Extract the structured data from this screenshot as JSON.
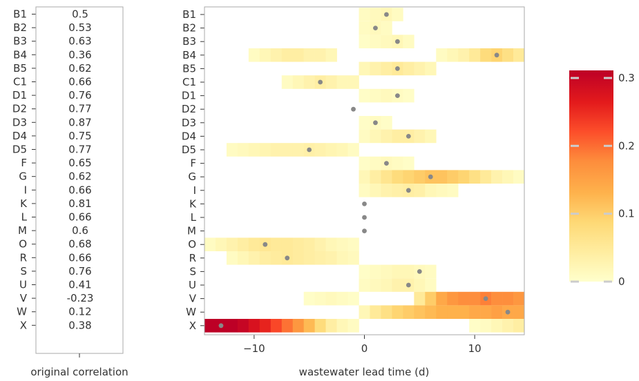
{
  "chart_data": [
    {
      "type": "table",
      "xlabel": "original correlation",
      "rows": [
        {
          "label": "B1",
          "value": "0.5"
        },
        {
          "label": "B2",
          "value": "0.53"
        },
        {
          "label": "B3",
          "value": "0.63"
        },
        {
          "label": "B4",
          "value": "0.36"
        },
        {
          "label": "B5",
          "value": "0.62"
        },
        {
          "label": "C1",
          "value": "0.66"
        },
        {
          "label": "D1",
          "value": "0.76"
        },
        {
          "label": "D2",
          "value": "0.77"
        },
        {
          "label": "D3",
          "value": "0.87"
        },
        {
          "label": "D4",
          "value": "0.75"
        },
        {
          "label": "D5",
          "value": "0.77"
        },
        {
          "label": "F",
          "value": "0.65"
        },
        {
          "label": "G",
          "value": "0.62"
        },
        {
          "label": "I",
          "value": "0.66"
        },
        {
          "label": "K",
          "value": "0.81"
        },
        {
          "label": "L",
          "value": "0.66"
        },
        {
          "label": "M",
          "value": "0.6"
        },
        {
          "label": "O",
          "value": "0.68"
        },
        {
          "label": "R",
          "value": "0.66"
        },
        {
          "label": "S",
          "value": "0.76"
        },
        {
          "label": "U",
          "value": "0.41"
        },
        {
          "label": "V",
          "value": "-0.23"
        },
        {
          "label": "W",
          "value": "0.12"
        },
        {
          "label": "X",
          "value": "0.38"
        }
      ]
    },
    {
      "type": "heatmap",
      "xlabel": "wastewater lead time (d)",
      "xlim": [
        -14.5,
        14.5
      ],
      "xticks": [
        -10,
        0,
        10
      ],
      "xtick_labels": [
        "−10",
        "0",
        "10"
      ],
      "categories": [
        "B1",
        "B2",
        "B3",
        "B4",
        "B5",
        "C1",
        "D1",
        "D2",
        "D3",
        "D4",
        "D5",
        "F",
        "G",
        "I",
        "K",
        "L",
        "M",
        "O",
        "R",
        "S",
        "U",
        "V",
        "W",
        "X"
      ],
      "best_lag_marker_color": "#888888",
      "best_lag": [
        2,
        1,
        3,
        12,
        3,
        -4,
        3,
        -1,
        1,
        4,
        -5,
        2,
        6,
        4,
        0,
        0,
        0,
        -9,
        -7,
        5,
        4,
        11,
        13,
        -13
      ],
      "cells": [
        {
          "row": "B1",
          "lags": [
            0,
            1,
            2,
            3
          ],
          "values": [
            0.01,
            0.015,
            0.02,
            0.01
          ]
        },
        {
          "row": "B2",
          "lags": [
            0,
            1,
            2
          ],
          "values": [
            0.01,
            0.015,
            0.01
          ]
        },
        {
          "row": "B3",
          "lags": [
            0,
            1,
            2,
            3,
            4
          ],
          "values": [
            0.005,
            0.01,
            0.015,
            0.02,
            0.01
          ]
        },
        {
          "row": "B4",
          "lags": [
            -10,
            -9,
            -8,
            -7,
            -6,
            -5,
            -4,
            -3,
            7,
            8,
            9,
            10,
            11,
            12,
            13,
            14
          ],
          "values": [
            0.01,
            0.02,
            0.03,
            0.04,
            0.04,
            0.03,
            0.03,
            0.02,
            0.01,
            0.02,
            0.03,
            0.05,
            0.08,
            0.09,
            0.07,
            0.05
          ]
        },
        {
          "row": "B5",
          "lags": [
            0,
            1,
            2,
            3,
            4,
            5,
            6
          ],
          "values": [
            0.02,
            0.03,
            0.04,
            0.05,
            0.04,
            0.03,
            0.02
          ]
        },
        {
          "row": "C1",
          "lags": [
            -7,
            -6,
            -5,
            -4,
            -3,
            -2,
            -1
          ],
          "values": [
            0.01,
            0.02,
            0.03,
            0.04,
            0.03,
            0.02,
            0.02
          ]
        },
        {
          "row": "D1",
          "lags": [
            0,
            1,
            2,
            3,
            4
          ],
          "values": [
            0.005,
            0.01,
            0.015,
            0.01,
            0.005
          ]
        },
        {
          "row": "D3",
          "lags": [
            0,
            1,
            2
          ],
          "values": [
            0.005,
            0.01,
            0.005
          ]
        },
        {
          "row": "D4",
          "lags": [
            0,
            1,
            2,
            3,
            4,
            5,
            6
          ],
          "values": [
            0.01,
            0.02,
            0.03,
            0.04,
            0.04,
            0.03,
            0.02
          ]
        },
        {
          "row": "D5",
          "lags": [
            -12,
            -11,
            -10,
            -9,
            -8,
            -7,
            -6,
            -5,
            -4,
            -3,
            -2,
            -1
          ],
          "values": [
            0.01,
            0.015,
            0.02,
            0.025,
            0.03,
            0.03,
            0.03,
            0.035,
            0.03,
            0.025,
            0.02,
            0.01
          ]
        },
        {
          "row": "F",
          "lags": [
            0,
            1,
            2,
            3,
            4
          ],
          "values": [
            0.005,
            0.01,
            0.015,
            0.01,
            0.005
          ]
        },
        {
          "row": "G",
          "lags": [
            0,
            1,
            2,
            3,
            4,
            5,
            6,
            7,
            8,
            9,
            10,
            11,
            12,
            13,
            14
          ],
          "values": [
            0.02,
            0.04,
            0.06,
            0.08,
            0.09,
            0.1,
            0.11,
            0.11,
            0.1,
            0.09,
            0.07,
            0.05,
            0.03,
            0.02,
            0.01
          ]
        },
        {
          "row": "I",
          "lags": [
            0,
            1,
            2,
            3,
            4,
            5,
            6,
            7,
            8
          ],
          "values": [
            0.01,
            0.02,
            0.03,
            0.035,
            0.04,
            0.035,
            0.02,
            0.015,
            0.01
          ]
        },
        {
          "row": "O",
          "lags": [
            -14,
            -13,
            -12,
            -11,
            -10,
            -9,
            -8,
            -7,
            -6,
            -5,
            -4,
            -3,
            -2,
            -1
          ],
          "values": [
            0.01,
            0.02,
            0.03,
            0.04,
            0.05,
            0.055,
            0.05,
            0.05,
            0.045,
            0.04,
            0.03,
            0.02,
            0.015,
            0.01
          ]
        },
        {
          "row": "R",
          "lags": [
            -12,
            -11,
            -10,
            -9,
            -8,
            -7,
            -6,
            -5,
            -4,
            -3,
            -2,
            -1
          ],
          "values": [
            0.01,
            0.02,
            0.03,
            0.04,
            0.045,
            0.05,
            0.045,
            0.04,
            0.035,
            0.03,
            0.02,
            0.015
          ]
        },
        {
          "row": "S",
          "lags": [
            0,
            1,
            2,
            3,
            4,
            5,
            6
          ],
          "values": [
            0.005,
            0.01,
            0.015,
            0.02,
            0.02,
            0.015,
            0.01
          ]
        },
        {
          "row": "U",
          "lags": [
            0,
            1,
            2,
            3,
            4,
            5,
            6
          ],
          "values": [
            0.01,
            0.015,
            0.02,
            0.03,
            0.03,
            0.02,
            0.01
          ]
        },
        {
          "row": "V",
          "lags": [
            -5,
            -4,
            -3,
            -2,
            -1,
            5,
            6,
            7,
            8,
            9,
            10,
            11,
            12,
            13,
            14
          ],
          "values": [
            0.005,
            0.01,
            0.015,
            0.01,
            0.005,
            0.05,
            0.1,
            0.14,
            0.16,
            0.17,
            0.17,
            0.18,
            0.17,
            0.17,
            0.16
          ]
        },
        {
          "row": "W",
          "lags": [
            0,
            1,
            2,
            3,
            4,
            5,
            6,
            7,
            8,
            9,
            10,
            11,
            12,
            13,
            14
          ],
          "values": [
            0.02,
            0.05,
            0.07,
            0.09,
            0.1,
            0.11,
            0.12,
            0.13,
            0.13,
            0.13,
            0.14,
            0.14,
            0.15,
            0.14,
            0.14
          ]
        },
        {
          "row": "X",
          "lags": [
            -14,
            -13,
            -12,
            -11,
            -10,
            -9,
            -8,
            -7,
            -6,
            -5,
            -4,
            -3,
            -2,
            -1,
            10,
            11,
            12,
            13,
            14
          ],
          "values": [
            0.3,
            0.31,
            0.3,
            0.29,
            0.27,
            0.25,
            0.22,
            0.19,
            0.16,
            0.12,
            0.08,
            0.04,
            0.02,
            0.01,
            0.005,
            0.01,
            0.02,
            0.03,
            0.04
          ]
        }
      ],
      "colorbar": {
        "range": [
          0,
          0.3
        ],
        "ticks": [
          0,
          0.1,
          0.2,
          0.3
        ],
        "tick_labels": [
          "0",
          "0.1",
          "0.2",
          "0.3"
        ],
        "colors": [
          "#ffffcc",
          "#ffeda0",
          "#fed976",
          "#feb24c",
          "#fd8d3c",
          "#fc4e2a",
          "#e31a1c",
          "#bd0026"
        ]
      }
    }
  ]
}
